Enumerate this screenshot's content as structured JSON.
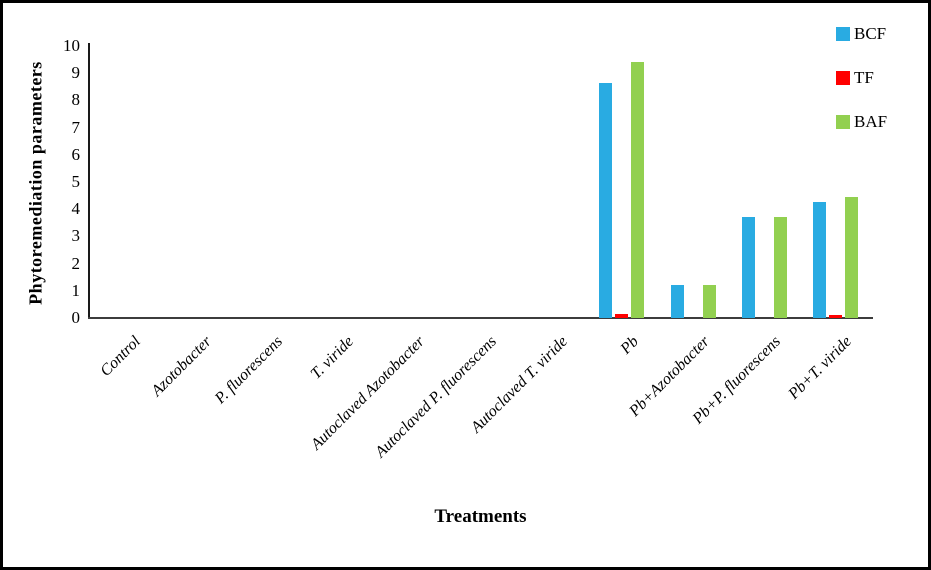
{
  "figure": {
    "background": "#ffffff",
    "border_color": "#000000"
  },
  "chart_data": {
    "type": "bar",
    "title": "",
    "xlabel": "Treatments",
    "ylabel": "Phytoremediation parameters",
    "ylim": [
      0,
      10
    ],
    "yticks": [
      0,
      1,
      2,
      3,
      4,
      5,
      6,
      7,
      8,
      9,
      10
    ],
    "grid": false,
    "legend_position": "top-right",
    "categories": [
      "Control",
      "Azotobacter",
      "P. fluorescens",
      "T. viride",
      "Autoclaved Azotobacter",
      "Autoclaved P. fluorescens",
      "Autoclaved T. viride",
      "Pb",
      "Pb+Azotobacter",
      "Pb+P. fluorescens",
      "Pb+T. viride"
    ],
    "series": [
      {
        "name": "BCF",
        "color": "#29ABE2",
        "values": [
          0,
          0,
          0,
          0,
          0,
          0,
          0,
          8.65,
          1.2,
          3.7,
          4.25
        ]
      },
      {
        "name": "TF",
        "color": "#FF0000",
        "values": [
          0,
          0,
          0,
          0,
          0,
          0,
          0,
          0.15,
          0,
          0,
          0.1
        ]
      },
      {
        "name": "BAF",
        "color": "#92D050",
        "values": [
          0,
          0,
          0,
          0,
          0,
          0,
          0,
          9.4,
          1.2,
          3.7,
          4.45
        ]
      }
    ]
  }
}
